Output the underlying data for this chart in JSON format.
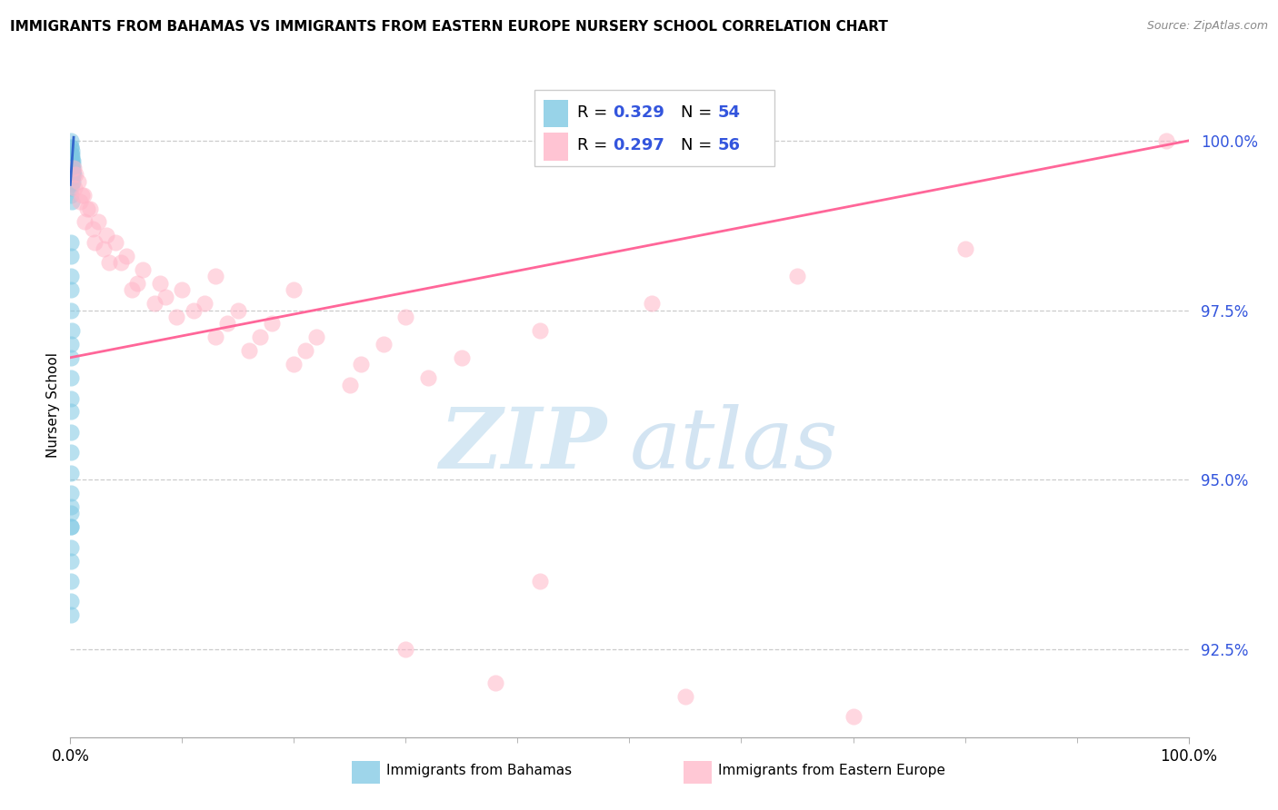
{
  "title": "IMMIGRANTS FROM BAHAMAS VS IMMIGRANTS FROM EASTERN EUROPE NURSERY SCHOOL CORRELATION CHART",
  "source": "Source: ZipAtlas.com",
  "ylabel": "Nursery School",
  "ytick_values": [
    92.5,
    95.0,
    97.5,
    100.0
  ],
  "xmin": 0.0,
  "xmax": 100.0,
  "ymin": 91.2,
  "ymax": 101.0,
  "legend_blue_label": "Immigrants from Bahamas",
  "legend_pink_label": "Immigrants from Eastern Europe",
  "blue_color": "#7ec8e3",
  "pink_color": "#ffb6c8",
  "blue_line_color": "#3366cc",
  "pink_line_color": "#ff6699",
  "text_color": "#3355dd",
  "watermark_zip": "ZIP",
  "watermark_atlas": "atlas",
  "blue_scatter_x": [
    0.05,
    0.08,
    0.1,
    0.12,
    0.15,
    0.18,
    0.2,
    0.22,
    0.25,
    0.28,
    0.05,
    0.08,
    0.1,
    0.12,
    0.15,
    0.18,
    0.05,
    0.07,
    0.1,
    0.13,
    0.05,
    0.07,
    0.09,
    0.11,
    0.14,
    0.05,
    0.08,
    0.06,
    0.09,
    0.12,
    0.05,
    0.07,
    0.04,
    0.06,
    0.08,
    0.1,
    0.05,
    0.07,
    0.09,
    0.05,
    0.04,
    0.06,
    0.08,
    0.04,
    0.06,
    0.08,
    0.04,
    0.06,
    0.05,
    0.07,
    0.03,
    0.05,
    0.07,
    0.09
  ],
  "blue_scatter_y": [
    100.0,
    99.9,
    99.85,
    99.8,
    99.75,
    99.7,
    99.65,
    99.6,
    99.55,
    99.5,
    99.9,
    99.8,
    99.7,
    99.6,
    99.5,
    99.4,
    99.8,
    99.7,
    99.6,
    99.5,
    99.7,
    99.6,
    99.55,
    99.45,
    99.35,
    99.6,
    99.5,
    99.3,
    99.2,
    99.1,
    98.5,
    98.3,
    98.0,
    97.8,
    97.5,
    97.2,
    97.0,
    96.8,
    96.5,
    96.2,
    96.0,
    95.7,
    95.4,
    95.1,
    94.8,
    94.5,
    94.3,
    94.0,
    94.6,
    94.3,
    93.5,
    93.8,
    93.2,
    93.0
  ],
  "pink_scatter_x": [
    0.3,
    0.7,
    1.2,
    1.8,
    2.5,
    3.2,
    4.0,
    5.0,
    6.5,
    8.0,
    10.0,
    12.0,
    15.0,
    18.0,
    22.0,
    28.0,
    35.0,
    42.0,
    52.0,
    65.0,
    80.0,
    98.0,
    0.5,
    1.0,
    1.5,
    2.0,
    3.0,
    4.5,
    6.0,
    8.5,
    11.0,
    14.0,
    17.0,
    21.0,
    26.0,
    32.0,
    0.4,
    0.9,
    1.3,
    2.2,
    3.5,
    5.5,
    7.5,
    9.5,
    13.0,
    16.0,
    20.0,
    25.0,
    30.0,
    38.0,
    13.0,
    20.0,
    30.0,
    42.0,
    55.0,
    70.0
  ],
  "pink_scatter_y": [
    99.6,
    99.4,
    99.2,
    99.0,
    98.8,
    98.6,
    98.5,
    98.3,
    98.1,
    97.9,
    97.8,
    97.6,
    97.5,
    97.3,
    97.1,
    97.0,
    96.8,
    97.2,
    97.6,
    98.0,
    98.4,
    100.0,
    99.5,
    99.2,
    99.0,
    98.7,
    98.4,
    98.2,
    97.9,
    97.7,
    97.5,
    97.3,
    97.1,
    96.9,
    96.7,
    96.5,
    99.3,
    99.1,
    98.8,
    98.5,
    98.2,
    97.8,
    97.6,
    97.4,
    97.1,
    96.9,
    96.7,
    96.4,
    92.5,
    92.0,
    98.0,
    97.8,
    97.4,
    93.5,
    91.8,
    91.5
  ],
  "blue_line_x": [
    0.0,
    0.3
  ],
  "blue_line_y": [
    99.35,
    100.05
  ],
  "pink_line_x": [
    0.0,
    100.0
  ],
  "pink_line_y": [
    96.8,
    100.0
  ]
}
